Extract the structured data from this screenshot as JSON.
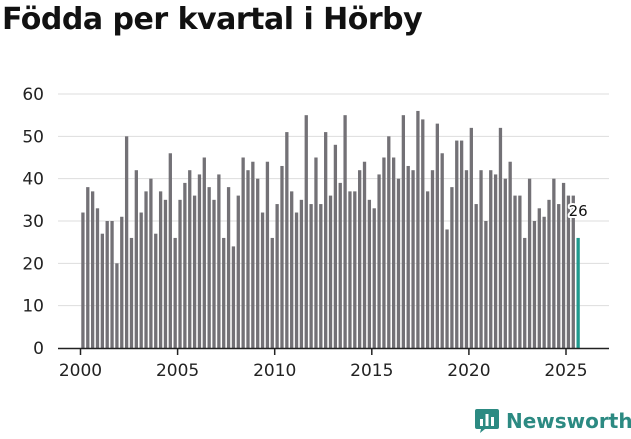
{
  "colors": {
    "bar": "#737176",
    "highlight": "#1f9a8e",
    "grid": "#dddddd",
    "axis": "#222222",
    "text": "#111111",
    "brand": "#2c8a82"
  },
  "brand": {
    "name": "Newsworthy",
    "icon": "chart-bars-icon"
  },
  "chart_data": {
    "type": "bar",
    "title": "Födda per kvartal i Hörby",
    "xlabel": "",
    "ylabel": "",
    "ylim": [
      0,
      60
    ],
    "yticks": [
      "0",
      "10",
      "20",
      "30",
      "40",
      "50",
      "60"
    ],
    "xlim": [
      1999.2,
      2026.6
    ],
    "xticks": [
      "2000",
      "2005",
      "2010",
      "2015",
      "2020",
      "2025"
    ],
    "grid": true,
    "start": {
      "year": 2000,
      "quarter": 1
    },
    "values": [
      32,
      38,
      37,
      33,
      27,
      30,
      30,
      20,
      31,
      50,
      26,
      42,
      32,
      37,
      40,
      27,
      37,
      35,
      46,
      26,
      35,
      39,
      42,
      36,
      41,
      45,
      38,
      35,
      41,
      26,
      38,
      24,
      36,
      45,
      42,
      44,
      40,
      32,
      44,
      26,
      34,
      43,
      51,
      37,
      32,
      35,
      55,
      34,
      45,
      34,
      51,
      36,
      48,
      39,
      55,
      37,
      37,
      42,
      44,
      35,
      33,
      41,
      45,
      50,
      45,
      40,
      55,
      43,
      42,
      56,
      54,
      37,
      42,
      53,
      46,
      28,
      38,
      49,
      49,
      42,
      52,
      34,
      42,
      30,
      42,
      41,
      52,
      40,
      44,
      36,
      36,
      26,
      40,
      30,
      33,
      31,
      35,
      40,
      34,
      39,
      36,
      36,
      26
    ],
    "last_value_label": "26"
  }
}
